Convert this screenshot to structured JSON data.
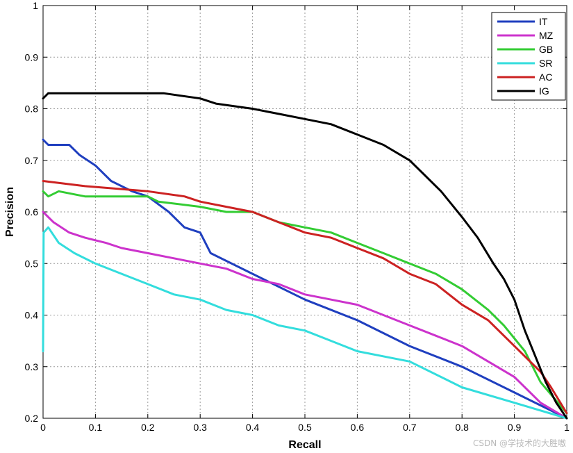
{
  "chart_data": {
    "type": "line",
    "xlabel": "Recall",
    "ylabel": "Precision",
    "xlim": [
      0,
      1
    ],
    "ylim": [
      0.2,
      1
    ],
    "xticks": [
      "0",
      "0.1",
      "0.2",
      "0.3",
      "0.4",
      "0.5",
      "0.6",
      "0.7",
      "0.8",
      "0.9",
      "1"
    ],
    "yticks": [
      "0.2",
      "0.3",
      "0.4",
      "0.5",
      "0.6",
      "0.7",
      "0.8",
      "0.9",
      "1"
    ],
    "grid": true,
    "legend": "top-right",
    "series": [
      {
        "name": "IT",
        "color": "#1f3fbf",
        "points": [
          [
            0,
            0.74
          ],
          [
            0.01,
            0.73
          ],
          [
            0.05,
            0.73
          ],
          [
            0.07,
            0.71
          ],
          [
            0.1,
            0.69
          ],
          [
            0.13,
            0.66
          ],
          [
            0.17,
            0.64
          ],
          [
            0.2,
            0.63
          ],
          [
            0.24,
            0.6
          ],
          [
            0.27,
            0.57
          ],
          [
            0.3,
            0.56
          ],
          [
            0.32,
            0.52
          ],
          [
            0.4,
            0.48
          ],
          [
            0.5,
            0.43
          ],
          [
            0.6,
            0.39
          ],
          [
            0.7,
            0.34
          ],
          [
            0.8,
            0.3
          ],
          [
            0.9,
            0.25
          ],
          [
            1,
            0.2
          ]
        ]
      },
      {
        "name": "MZ",
        "color": "#cc33cc",
        "points": [
          [
            0,
            0.6
          ],
          [
            0.02,
            0.58
          ],
          [
            0.05,
            0.56
          ],
          [
            0.08,
            0.55
          ],
          [
            0.12,
            0.54
          ],
          [
            0.15,
            0.53
          ],
          [
            0.2,
            0.52
          ],
          [
            0.25,
            0.51
          ],
          [
            0.3,
            0.5
          ],
          [
            0.35,
            0.49
          ],
          [
            0.4,
            0.47
          ],
          [
            0.45,
            0.46
          ],
          [
            0.5,
            0.44
          ],
          [
            0.55,
            0.43
          ],
          [
            0.6,
            0.42
          ],
          [
            0.65,
            0.4
          ],
          [
            0.7,
            0.38
          ],
          [
            0.75,
            0.36
          ],
          [
            0.8,
            0.34
          ],
          [
            0.85,
            0.31
          ],
          [
            0.9,
            0.28
          ],
          [
            0.95,
            0.23
          ],
          [
            1,
            0.2
          ]
        ]
      },
      {
        "name": "GB",
        "color": "#33cc33",
        "points": [
          [
            0,
            0.64
          ],
          [
            0.01,
            0.63
          ],
          [
            0.03,
            0.64
          ],
          [
            0.08,
            0.63
          ],
          [
            0.2,
            0.63
          ],
          [
            0.22,
            0.62
          ],
          [
            0.3,
            0.61
          ],
          [
            0.35,
            0.6
          ],
          [
            0.4,
            0.6
          ],
          [
            0.45,
            0.58
          ],
          [
            0.5,
            0.57
          ],
          [
            0.55,
            0.56
          ],
          [
            0.6,
            0.54
          ],
          [
            0.65,
            0.52
          ],
          [
            0.7,
            0.5
          ],
          [
            0.75,
            0.48
          ],
          [
            0.8,
            0.45
          ],
          [
            0.85,
            0.41
          ],
          [
            0.88,
            0.38
          ],
          [
            0.92,
            0.33
          ],
          [
            0.95,
            0.27
          ],
          [
            1,
            0.21
          ]
        ]
      },
      {
        "name": "SR",
        "color": "#33dddd",
        "points": [
          [
            0,
            0.33
          ],
          [
            0.001,
            0.56
          ],
          [
            0.01,
            0.57
          ],
          [
            0.03,
            0.54
          ],
          [
            0.06,
            0.52
          ],
          [
            0.1,
            0.5
          ],
          [
            0.15,
            0.48
          ],
          [
            0.2,
            0.46
          ],
          [
            0.25,
            0.44
          ],
          [
            0.3,
            0.43
          ],
          [
            0.35,
            0.41
          ],
          [
            0.4,
            0.4
          ],
          [
            0.45,
            0.38
          ],
          [
            0.5,
            0.37
          ],
          [
            0.55,
            0.35
          ],
          [
            0.6,
            0.33
          ],
          [
            0.7,
            0.31
          ],
          [
            0.8,
            0.26
          ],
          [
            0.9,
            0.23
          ],
          [
            1,
            0.2
          ]
        ]
      },
      {
        "name": "AC",
        "color": "#cc2222",
        "points": [
          [
            0,
            0.66
          ],
          [
            0.08,
            0.65
          ],
          [
            0.2,
            0.64
          ],
          [
            0.27,
            0.63
          ],
          [
            0.3,
            0.62
          ],
          [
            0.35,
            0.61
          ],
          [
            0.4,
            0.6
          ],
          [
            0.45,
            0.58
          ],
          [
            0.5,
            0.56
          ],
          [
            0.55,
            0.55
          ],
          [
            0.6,
            0.53
          ],
          [
            0.65,
            0.51
          ],
          [
            0.7,
            0.48
          ],
          [
            0.75,
            0.46
          ],
          [
            0.8,
            0.42
          ],
          [
            0.85,
            0.39
          ],
          [
            0.88,
            0.36
          ],
          [
            0.92,
            0.32
          ],
          [
            0.95,
            0.29
          ],
          [
            0.97,
            0.26
          ],
          [
            1,
            0.21
          ]
        ]
      },
      {
        "name": "IG",
        "color": "#000000",
        "points": [
          [
            0,
            0.82
          ],
          [
            0.01,
            0.83
          ],
          [
            0.1,
            0.83
          ],
          [
            0.23,
            0.83
          ],
          [
            0.3,
            0.82
          ],
          [
            0.33,
            0.81
          ],
          [
            0.4,
            0.8
          ],
          [
            0.45,
            0.79
          ],
          [
            0.5,
            0.78
          ],
          [
            0.55,
            0.77
          ],
          [
            0.6,
            0.75
          ],
          [
            0.65,
            0.73
          ],
          [
            0.7,
            0.7
          ],
          [
            0.73,
            0.67
          ],
          [
            0.76,
            0.64
          ],
          [
            0.8,
            0.59
          ],
          [
            0.83,
            0.55
          ],
          [
            0.86,
            0.5
          ],
          [
            0.88,
            0.47
          ],
          [
            0.9,
            0.43
          ],
          [
            0.92,
            0.37
          ],
          [
            0.94,
            0.32
          ],
          [
            0.96,
            0.27
          ],
          [
            0.98,
            0.23
          ],
          [
            1,
            0.2
          ]
        ]
      }
    ]
  },
  "watermark": "CSDN @学技术的大胜嗷"
}
